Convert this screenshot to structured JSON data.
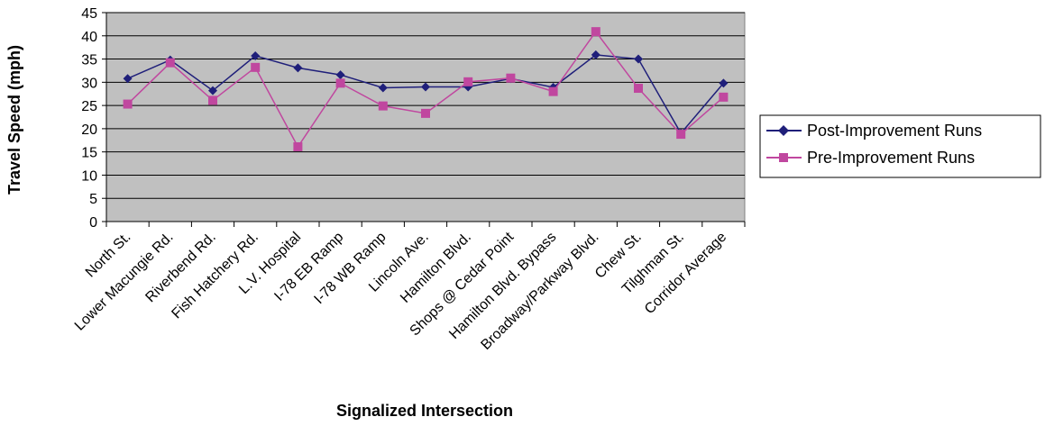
{
  "chart_data": {
    "type": "line",
    "xlabel": "Signalized Intersection",
    "ylabel": "Travel Speed (mph)",
    "ylim": [
      0,
      45
    ],
    "yticks": [
      0,
      5,
      10,
      15,
      20,
      25,
      30,
      35,
      40,
      45
    ],
    "grid": "horizontal",
    "plot_background": "#c0c0c0",
    "legend_position": "right",
    "categories": [
      "North St.",
      "Lower Macungie Rd.",
      "Riverbend Rd.",
      "Fish Hatchery Rd.",
      "L.V. Hospital",
      "I-78 EB Ramp",
      "I-78 WB Ramp",
      "Lincoln Ave.",
      "Hamilton Blvd.",
      "Shops @ Cedar Point",
      "Hamilton Blvd. Bypass",
      "Broadway/Parkway Blvd.",
      "Chew St.",
      "Tilghman St.",
      "Corridor Average"
    ],
    "series": [
      {
        "name": "Post-Improvement Runs",
        "color": "#1f1f7a",
        "marker": "diamond",
        "values": [
          30.8,
          34.8,
          28.2,
          35.7,
          33.1,
          31.6,
          28.8,
          29.0,
          29.0,
          30.8,
          28.9,
          35.9,
          35.0,
          19.0,
          29.8
        ]
      },
      {
        "name": "Pre-Improvement Runs",
        "color": "#c0479f",
        "marker": "square",
        "values": [
          25.3,
          34.2,
          26.1,
          33.2,
          16.1,
          29.8,
          24.9,
          23.3,
          30.1,
          30.9,
          28.0,
          40.9,
          28.7,
          18.8,
          26.8
        ]
      }
    ]
  }
}
